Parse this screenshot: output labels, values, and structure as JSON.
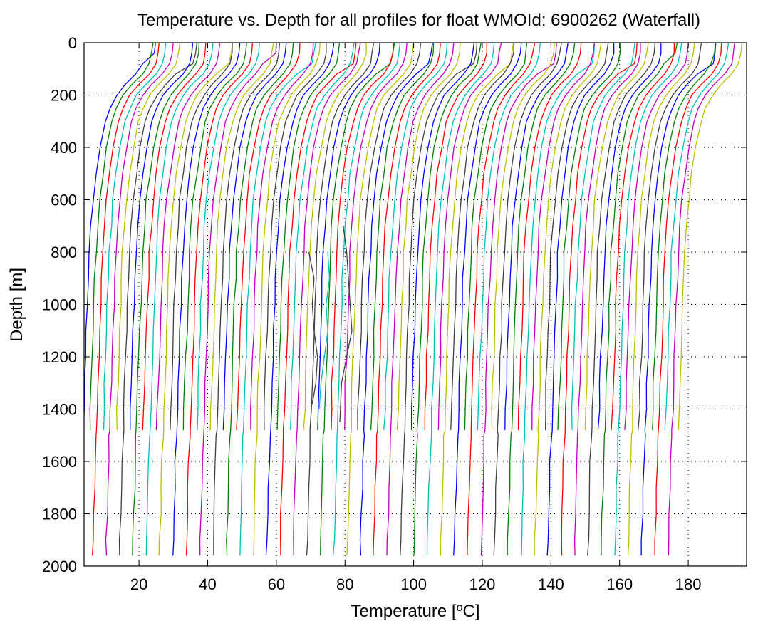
{
  "chart_data": {
    "type": "line",
    "title": "Temperature vs. Depth for all profiles for float WMOId: 6900262 (Waterfall)",
    "xlabel_main": "Temperature [",
    "xlabel_sup": "o",
    "xlabel_tail": "C]",
    "ylabel": "Depth [m]",
    "xlim": [
      4,
      197
    ],
    "ylim": [
      0,
      2000
    ],
    "y_reversed": true,
    "grid": true,
    "grid_style": "dotted",
    "xticks": [
      20,
      40,
      60,
      80,
      100,
      120,
      140,
      160,
      180
    ],
    "yticks": [
      0,
      200,
      400,
      600,
      800,
      1000,
      1200,
      1400,
      1600,
      1800,
      2000
    ],
    "series_colors": [
      "#0000ff",
      "#008000",
      "#ff0000",
      "#00bfbf",
      "#bf00bf",
      "#bfbf00",
      "#404040"
    ],
    "profile_count": 90,
    "first_profile_surface_temp": 22,
    "profile_offset_step": 1.95,
    "profile_template": {
      "depth": [
        0,
        40,
        80,
        120,
        160,
        200,
        250,
        300,
        400,
        500,
        600,
        700,
        800,
        900,
        1000,
        1100,
        1200,
        1300,
        1400,
        1480,
        1500,
        1600,
        1700,
        1800,
        1900,
        1960
      ],
      "temp_anomaly": [
        0,
        -0.3,
        -1.0,
        -3.0,
        -6.0,
        -8.5,
        -10.5,
        -11.8,
        -13.4,
        -14.5,
        -15.4,
        -16.0,
        -16.5,
        -16.8,
        -17.1,
        -17.3,
        -17.6,
        -17.9,
        -18.1,
        -18.3,
        -18.4,
        -18.7,
        -18.9,
        -19.1,
        -19.3,
        -19.4
      ]
    },
    "deep_profile_max_depth": 1960,
    "shallow_profile_max_depth": 1480,
    "anomalous_profiles": [
      {
        "color": "#404040",
        "depth": [
          800,
          900,
          1000,
          1100,
          1200,
          1300,
          1380
        ],
        "temp": [
          69.5,
          71.0,
          70.5,
          71.0,
          72.0,
          71.5,
          70.5
        ]
      },
      {
        "color": "#00bfbf",
        "depth": [
          800,
          900,
          1000,
          1100,
          1200,
          1300,
          1400
        ],
        "temp": [
          75.0,
          75.5,
          74.5,
          75.0,
          74.0,
          73.0,
          72.5
        ]
      },
      {
        "color": "#404040",
        "depth": [
          700,
          800,
          900,
          1000,
          1100,
          1200,
          1300,
          1450
        ],
        "temp": [
          79.5,
          80.5,
          81.0,
          81.5,
          82.0,
          80.5,
          79.0,
          78.5
        ]
      }
    ]
  }
}
